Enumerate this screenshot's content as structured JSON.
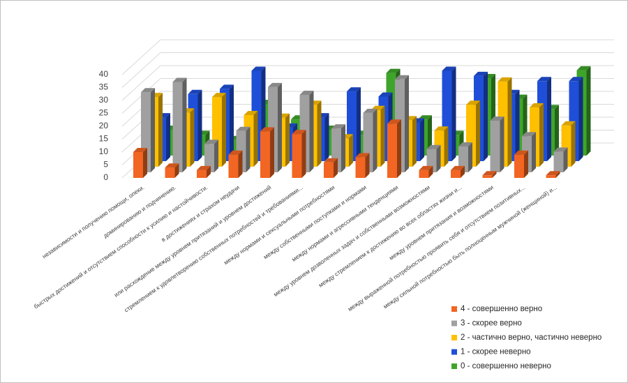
{
  "chart_data": {
    "type": "bar3d",
    "categories": [
      "независимости и получению помощи, опеки.",
      "доминированию и подчинению.",
      "быстрых достижений и отсутствием способности к усилию и настойчивости.",
      "в достижениях и страхом неудачи",
      "или расхождение между уровнем притязаний и уровнем достижений",
      "стремлением к удовлетворению собственных потребностей и требованиями...",
      "между нормами и сексуальными потребностями",
      "между собственными поступками и нормами",
      "между нормами и агрессивными тенденциями",
      "между уровнем дозволенных задач и собственными возможностями",
      "между стремлением к достижению во всех областях жизни и...",
      "между уровнем притязания и возможностями",
      "между выраженной потребностью проявить себя и отсутствием позитивных...",
      "между сильной потребностью быть полноценным мужчиной (женщиной) и..."
    ],
    "series": [
      {
        "name": "4 - совершенно верно",
        "color": "#f26522",
        "values": [
          10,
          4,
          3,
          9,
          18,
          17,
          6,
          8,
          21,
          3,
          3,
          1,
          9,
          1
        ]
      },
      {
        "name": "3 - скорее верно",
        "color": "#a0a0a0",
        "values": [
          31,
          35,
          11,
          16,
          33,
          30,
          17,
          23,
          36,
          9,
          10,
          20,
          14,
          8
        ]
      },
      {
        "name": "2 - частично верно, частично неверно",
        "color": "#ffc000",
        "values": [
          27,
          21,
          27,
          20,
          19,
          24,
          11,
          22,
          18,
          14,
          24,
          33,
          23,
          16
        ]
      },
      {
        "name": "1 - скорее неверно",
        "color": "#1f4fd8",
        "values": [
          17,
          26,
          28,
          35,
          13,
          17,
          27,
          25,
          15,
          35,
          33,
          26,
          31,
          31
        ]
      },
      {
        "name": "0 - совершенно неверно",
        "color": "#3ea52a",
        "values": [
          10,
          8,
          6,
          20,
          14,
          10,
          8,
          32,
          14,
          8,
          30,
          22,
          18,
          33
        ]
      }
    ],
    "ylim": [
      0,
      40
    ],
    "yticks": [
      0,
      5,
      10,
      15,
      20,
      25,
      30,
      35,
      40
    ],
    "grid": true
  }
}
